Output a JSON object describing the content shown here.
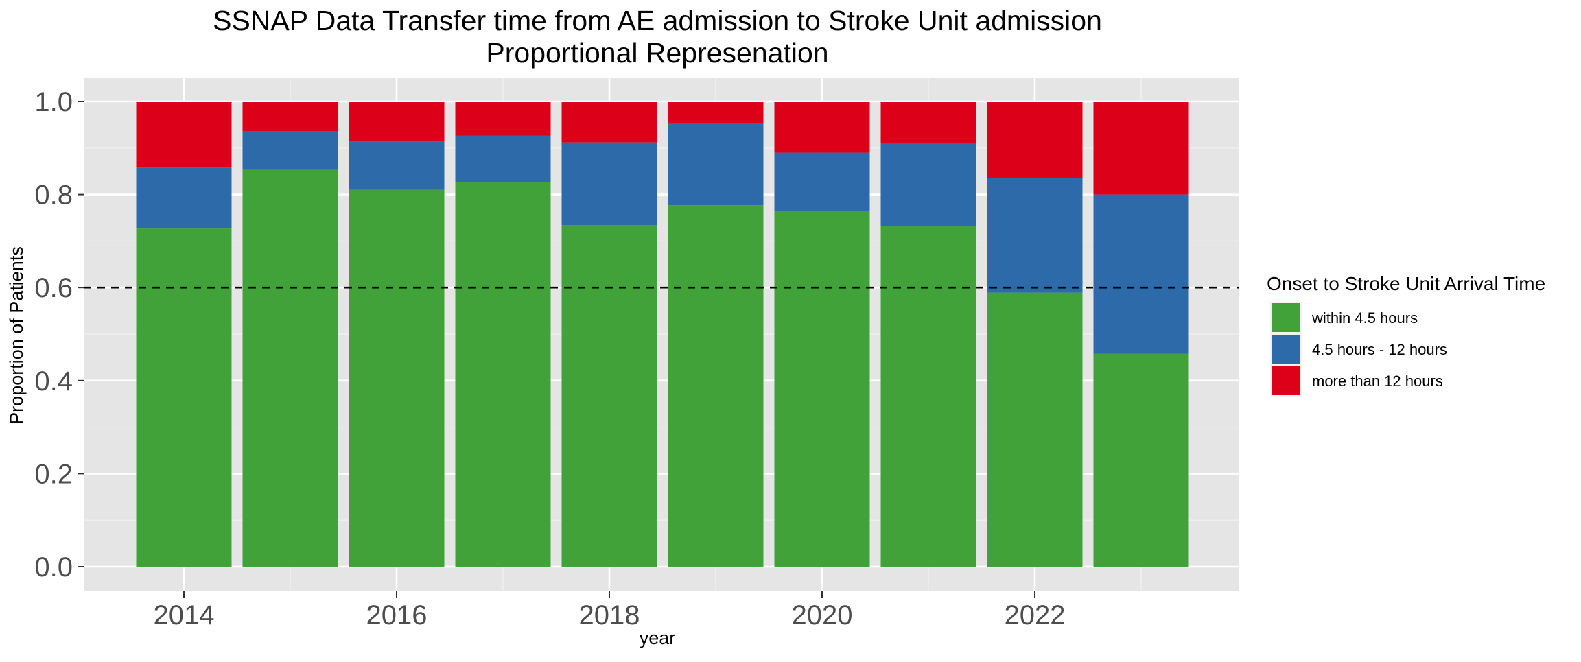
{
  "chart_data": {
    "type": "bar",
    "stacked": true,
    "title_line1": "SSNAP Data Transfer time from AE admission to Stroke Unit admission",
    "title_line2": "Proportional Represenation",
    "xlabel": "year",
    "ylabel": "Proportion of Patients",
    "x": [
      2014,
      2015,
      2016,
      2017,
      2018,
      2019,
      2020,
      2021,
      2022,
      2023
    ],
    "x_ticks": [
      "2014",
      "2016",
      "2018",
      "2020",
      "2022"
    ],
    "y_ticks": [
      "0.0",
      "0.2",
      "0.4",
      "0.6",
      "0.8",
      "1.0"
    ],
    "ylim": [
      0,
      1
    ],
    "reference_line": {
      "y": 0.6,
      "style": "dashed"
    },
    "grid": true,
    "legend_position": "right",
    "legend_title": "Onset to Stroke Unit Arrival Time",
    "series": [
      {
        "name": "within 4.5 hours",
        "color": "#41A23A",
        "values": [
          0.727,
          0.853,
          0.81,
          0.826,
          0.734,
          0.777,
          0.764,
          0.732,
          0.589,
          0.458
        ]
      },
      {
        "name": "4.5 hours - 12 hours",
        "color": "#2C6AA9",
        "values": [
          0.131,
          0.083,
          0.104,
          0.101,
          0.178,
          0.177,
          0.126,
          0.177,
          0.246,
          0.342
        ]
      },
      {
        "name": "more than 12 hours",
        "color": "#DC0019",
        "values": [
          0.142,
          0.064,
          0.086,
          0.073,
          0.088,
          0.046,
          0.11,
          0.091,
          0.165,
          0.2
        ]
      }
    ]
  }
}
